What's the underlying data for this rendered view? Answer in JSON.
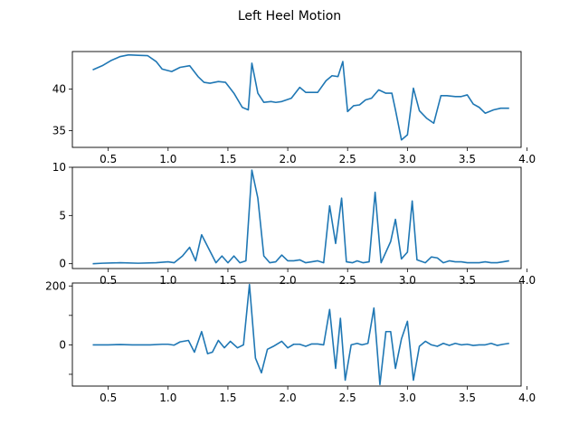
{
  "figure": {
    "title": "Left Heel Motion"
  },
  "style": {
    "line_color": "#1f77b4",
    "axis_color": "#000000",
    "background": "#ffffff"
  },
  "chart_data": [
    {
      "type": "line",
      "title": "",
      "xlabel": "",
      "ylabel": "",
      "xlim": [
        0.2,
        3.95
      ],
      "ylim": [
        33.0,
        44.5
      ],
      "xticks": [
        0.5,
        1.0,
        1.5,
        2.0,
        2.5,
        3.0,
        3.5,
        4.0
      ],
      "xtick_labels": [
        "0.5",
        "1.0",
        "1.5",
        "2.0",
        "2.5",
        "3.0",
        "3.5",
        "4.0"
      ],
      "yticks": [
        35,
        40
      ],
      "ytick_labels": [
        "35",
        "40"
      ],
      "grid": false,
      "series": [
        {
          "x": [
            0.37,
            0.45,
            0.52,
            0.6,
            0.67,
            0.75,
            0.83,
            0.9,
            0.95,
            1.03,
            1.1,
            1.18,
            1.25,
            1.3,
            1.35,
            1.42,
            1.48,
            1.55,
            1.62,
            1.67,
            1.7,
            1.75,
            1.8,
            1.86,
            1.9,
            1.95,
            2.03,
            2.1,
            2.15,
            2.2,
            2.25,
            2.32,
            2.37,
            2.42,
            2.46,
            2.5,
            2.55,
            2.6,
            2.65,
            2.7,
            2.76,
            2.82,
            2.87,
            2.9,
            2.95,
            3.0,
            3.05,
            3.1,
            3.16,
            3.22,
            3.28,
            3.33,
            3.4,
            3.45,
            3.5,
            3.55,
            3.6,
            3.65,
            3.72,
            3.78,
            3.85
          ],
          "y": [
            42.3,
            42.8,
            43.4,
            43.9,
            44.1,
            44.05,
            44.0,
            43.3,
            42.4,
            42.1,
            42.6,
            42.8,
            41.5,
            40.8,
            40.7,
            40.9,
            40.8,
            39.5,
            37.8,
            37.5,
            43.1,
            39.5,
            38.4,
            38.5,
            38.4,
            38.5,
            38.9,
            40.2,
            39.6,
            39.6,
            39.6,
            41.0,
            41.6,
            41.5,
            43.3,
            37.3,
            38.0,
            38.1,
            38.7,
            38.9,
            39.9,
            39.5,
            39.5,
            37.5,
            33.9,
            34.5,
            40.1,
            37.4,
            36.5,
            35.9,
            39.2,
            39.2,
            39.1,
            39.1,
            39.3,
            38.2,
            37.8,
            37.1,
            37.5,
            37.7,
            37.7
          ]
        }
      ]
    },
    {
      "type": "line",
      "title": "",
      "xlabel": "",
      "ylabel": "",
      "xlim": [
        0.2,
        3.95
      ],
      "ylim": [
        -0.5,
        10.0
      ],
      "xticks": [
        0.5,
        1.0,
        1.5,
        2.0,
        2.5,
        3.0,
        3.5,
        4.0
      ],
      "xtick_labels": [
        "0.5",
        "1.0",
        "1.5",
        "2.0",
        "2.5",
        "3.0",
        "3.5",
        "4.0"
      ],
      "yticks": [
        0,
        5,
        10
      ],
      "ytick_labels": [
        "0",
        "5",
        "10"
      ],
      "grid": false,
      "series": [
        {
          "x": [
            0.37,
            0.45,
            0.6,
            0.75,
            0.9,
            1.0,
            1.05,
            1.12,
            1.18,
            1.23,
            1.28,
            1.35,
            1.4,
            1.45,
            1.5,
            1.55,
            1.6,
            1.65,
            1.7,
            1.75,
            1.8,
            1.85,
            1.9,
            1.95,
            2.0,
            2.05,
            2.1,
            2.15,
            2.2,
            2.25,
            2.3,
            2.35,
            2.4,
            2.45,
            2.49,
            2.54,
            2.58,
            2.63,
            2.68,
            2.73,
            2.78,
            2.86,
            2.9,
            2.95,
            3.0,
            3.04,
            3.08,
            3.15,
            3.2,
            3.25,
            3.3,
            3.35,
            3.4,
            3.45,
            3.5,
            3.55,
            3.6,
            3.65,
            3.7,
            3.75,
            3.8,
            3.85
          ],
          "y": [
            0.0,
            0.05,
            0.1,
            0.05,
            0.1,
            0.2,
            0.1,
            0.8,
            1.7,
            0.3,
            3.0,
            1.3,
            0.1,
            0.8,
            0.1,
            0.8,
            0.1,
            0.3,
            9.7,
            6.8,
            0.8,
            0.1,
            0.2,
            0.9,
            0.3,
            0.3,
            0.4,
            0.1,
            0.2,
            0.3,
            0.1,
            6.0,
            2.1,
            6.8,
            0.2,
            0.1,
            0.3,
            0.1,
            0.2,
            7.4,
            0.1,
            2.3,
            4.6,
            0.5,
            1.2,
            6.5,
            0.4,
            0.1,
            0.7,
            0.6,
            0.1,
            0.3,
            0.2,
            0.2,
            0.1,
            0.1,
            0.1,
            0.2,
            0.1,
            0.1,
            0.2,
            0.3
          ]
        }
      ]
    },
    {
      "type": "line",
      "title": "",
      "xlabel": "",
      "ylabel": "",
      "xlim": [
        0.2,
        3.95
      ],
      "ylim": [
        -140,
        210
      ],
      "xticks": [
        0.5,
        1.0,
        1.5,
        2.0,
        2.5,
        3.0,
        3.5,
        4.0
      ],
      "xtick_labels": [
        "0.5",
        "1.0",
        "1.5",
        "2.0",
        "2.5",
        "3.0",
        "3.5",
        "4.0"
      ],
      "yticks": [
        -100,
        0,
        100,
        200
      ],
      "ytick_labels": [
        "",
        "0",
        "",
        "200"
      ],
      "grid": false,
      "series": [
        {
          "x": [
            0.37,
            0.5,
            0.6,
            0.7,
            0.85,
            0.95,
            1.0,
            1.05,
            1.1,
            1.17,
            1.22,
            1.28,
            1.33,
            1.37,
            1.42,
            1.47,
            1.52,
            1.58,
            1.63,
            1.68,
            1.73,
            1.78,
            1.83,
            1.88,
            1.95,
            2.0,
            2.05,
            2.1,
            2.15,
            2.2,
            2.25,
            2.3,
            2.35,
            2.4,
            2.44,
            2.48,
            2.53,
            2.58,
            2.62,
            2.67,
            2.72,
            2.77,
            2.82,
            2.86,
            2.9,
            2.95,
            3.0,
            3.05,
            3.1,
            3.15,
            3.2,
            3.25,
            3.3,
            3.35,
            3.4,
            3.45,
            3.5,
            3.55,
            3.6,
            3.65,
            3.7,
            3.75,
            3.8,
            3.85
          ],
          "y": [
            0,
            0,
            1,
            0,
            0,
            2,
            2,
            -1,
            10,
            15,
            -25,
            45,
            -30,
            -25,
            15,
            -10,
            12,
            -10,
            0,
            205,
            -45,
            -95,
            -15,
            -5,
            12,
            -10,
            2,
            2,
            -5,
            3,
            3,
            0,
            120,
            -80,
            90,
            -120,
            0,
            5,
            0,
            5,
            125,
            -135,
            45,
            45,
            -80,
            20,
            80,
            -120,
            -5,
            12,
            0,
            -5,
            5,
            -2,
            5,
            0,
            2,
            -2,
            0,
            0,
            5,
            -2,
            2,
            5
          ]
        }
      ]
    }
  ]
}
